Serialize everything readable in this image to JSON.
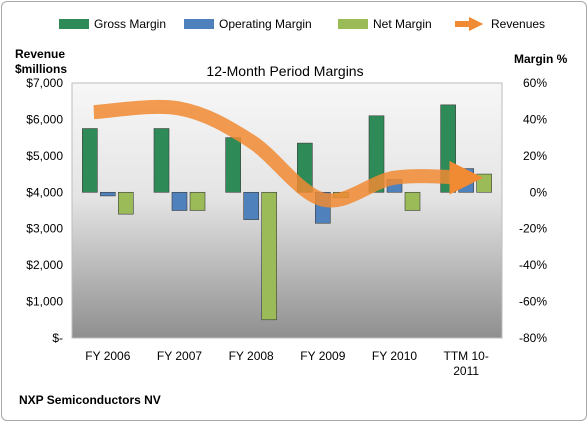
{
  "chart_data": {
    "type": "bar",
    "title": "12-Month Period Margins",
    "company": "NXP Semiconductors NV",
    "left_axis_label_line1": "Revenue",
    "left_axis_label_line2": "$millions",
    "right_axis_label": "Margin %",
    "categories": [
      "FY 2006",
      "FY 2007",
      "FY 2008",
      "FY 2009",
      "FY 2010",
      "TTM 10-2011"
    ],
    "category_label_lines": [
      [
        "FY 2006"
      ],
      [
        "FY 2007"
      ],
      [
        "FY 2008"
      ],
      [
        "FY 2009"
      ],
      [
        "FY 2010"
      ],
      [
        "TTM 10-",
        "2011"
      ]
    ],
    "left_ylim": [
      0,
      7000
    ],
    "left_ticks": [
      0,
      1000,
      2000,
      3000,
      4000,
      5000,
      6000,
      7000
    ],
    "left_tick_labels": [
      "$-",
      "$1,000",
      "$2,000",
      "$3,000",
      "$4,000",
      "$5,000",
      "$6,000",
      "$7,000"
    ],
    "right_ylim": [
      -80,
      60
    ],
    "right_ticks": [
      -80,
      -60,
      -40,
      -20,
      0,
      20,
      40,
      60
    ],
    "right_tick_labels": [
      "-80%",
      "-60%",
      "-40%",
      "-20%",
      "0%",
      "20%",
      "40%",
      "60%"
    ],
    "series": [
      {
        "name": "Gross Margin",
        "kind": "bar",
        "axis": "right",
        "color": "#2e8b57",
        "values": [
          35,
          35,
          30,
          27,
          42,
          48
        ]
      },
      {
        "name": "Operating Margin",
        "kind": "bar",
        "axis": "right",
        "color": "#4f81bd",
        "values": [
          -2,
          -10,
          -15,
          -17,
          7,
          13
        ]
      },
      {
        "name": "Net Margin",
        "kind": "bar",
        "axis": "right",
        "color": "#9bbb59",
        "values": [
          -12,
          -10,
          -70,
          -3,
          -10,
          10
        ]
      },
      {
        "name": "Revenues",
        "kind": "line",
        "axis": "left",
        "color": "#f08a33",
        "values": [
          6200,
          6300,
          5400,
          3800,
          4400,
          4400
        ]
      }
    ],
    "legend_position": "top",
    "grid": false,
    "background": "gradient"
  }
}
